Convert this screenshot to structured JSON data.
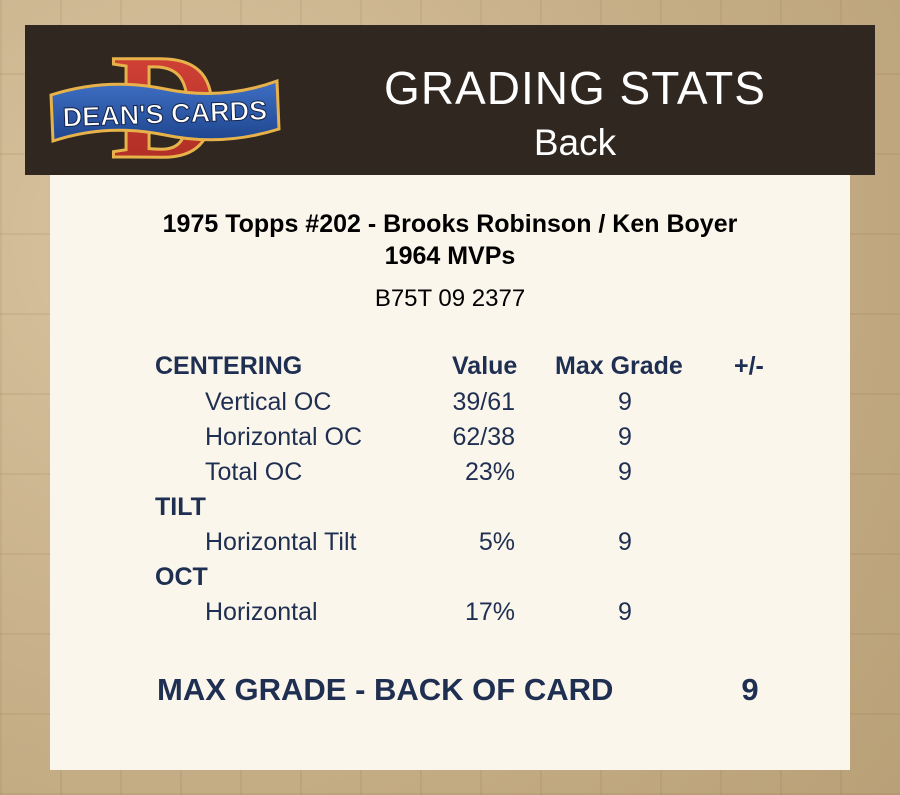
{
  "logo": {
    "wordmark": "DEAN'S CARDS",
    "letter": "D"
  },
  "header": {
    "title": "GRADING STATS",
    "subtitle": "Back"
  },
  "card": {
    "line1": "1975 Topps #202  -  Brooks Robinson / Ken Boyer",
    "line2": "1964 MVPs",
    "cert": "B75T 09 2377"
  },
  "columns": {
    "value": "Value",
    "max_grade": "Max Grade",
    "plus_minus": "+/-"
  },
  "sections": {
    "centering": {
      "label": "CENTERING",
      "rows": [
        {
          "label": "Vertical OC",
          "value": "39/61",
          "grade": "9"
        },
        {
          "label": "Horizontal OC",
          "value": "62/38",
          "grade": "9"
        },
        {
          "label": "Total OC",
          "value": "23%",
          "grade": "9"
        }
      ]
    },
    "tilt": {
      "label": "TILT",
      "rows": [
        {
          "label": "Horizontal Tilt",
          "value": "5%",
          "grade": "9"
        }
      ]
    },
    "oct": {
      "label": "OCT",
      "rows": [
        {
          "label": "Horizontal",
          "value": "17%",
          "grade": "9"
        }
      ]
    }
  },
  "summary": {
    "label": "MAX GRADE - BACK OF CARD",
    "value": "9"
  },
  "colors": {
    "header_bg": "#302720",
    "panel_bg": "#fbf6ec",
    "navy_text": "#1f2f52",
    "logo_red": "#c0302a",
    "logo_banner": "#2a55a5"
  }
}
